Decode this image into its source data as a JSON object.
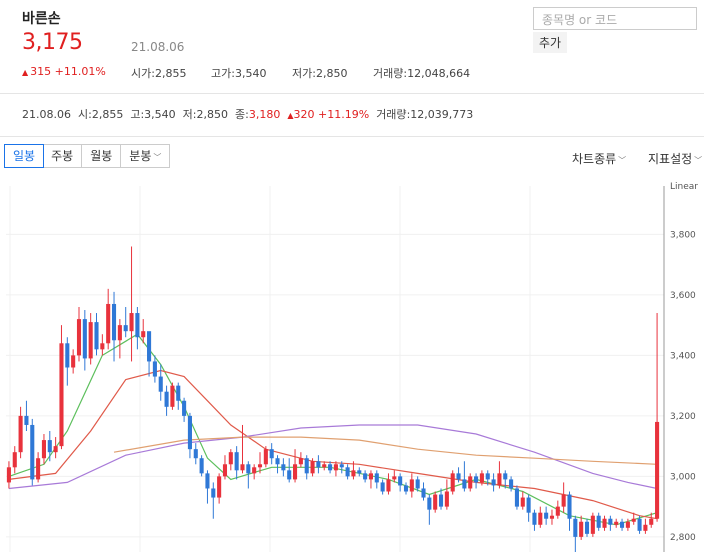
{
  "stock": {
    "name": "바른손",
    "price": "3,175",
    "date": "21.08.06",
    "change": "315",
    "change_pct": "+11.01%",
    "open_label": "시가",
    "open": "2,855",
    "high_label": "고가",
    "high": "3,540",
    "low_label": "저가",
    "low": "2,850",
    "volume_label": "거래량",
    "volume": "12,048,664"
  },
  "search": {
    "placeholder": "종목명 or 코드",
    "add_label": "추가"
  },
  "daily": {
    "date": "21.08.06",
    "open_label": "시",
    "open": "2,855",
    "high_label": "고",
    "high": "3,540",
    "low_label": "저",
    "low": "2,850",
    "close_label": "종",
    "close": "3,180",
    "change": "320",
    "change_pct": "+11.19%",
    "volume_label": "거래량",
    "volume": "12,039,773"
  },
  "tabs": [
    {
      "label": "일봉",
      "active": true
    },
    {
      "label": "주봉",
      "active": false
    },
    {
      "label": "월봉",
      "active": false
    },
    {
      "label": "분봉",
      "active": false
    }
  ],
  "menu": {
    "chart_type": "차트종류",
    "indicator": "지표설정"
  },
  "colors": {
    "up": "#e8323c",
    "down": "#2f78d6",
    "ma5": "#5cbf5c",
    "ma20": "#e05a4a",
    "ma60": "#a87ad8",
    "ma120": "#e0a070"
  },
  "chart_data": {
    "type": "candlestick",
    "scale_label": "Linear",
    "ylim": [
      2750,
      3960
    ],
    "y_ticks": [
      "3,800",
      "3,600",
      "3,400",
      "3,200",
      "3,000",
      "2,800"
    ],
    "candles": [
      [
        2980,
        3030,
        2960,
        3050
      ],
      [
        3030,
        3080,
        3010,
        3100
      ],
      [
        3080,
        3200,
        3060,
        3230
      ],
      [
        3200,
        3170,
        3150,
        3250
      ],
      [
        3170,
        2990,
        2970,
        3190
      ],
      [
        2990,
        3060,
        2980,
        3080
      ],
      [
        3060,
        3120,
        3040,
        3140
      ],
      [
        3120,
        3080,
        3050,
        3150
      ],
      [
        3080,
        3100,
        3060,
        3130
      ],
      [
        3100,
        3440,
        3090,
        3500
      ],
      [
        3440,
        3360,
        3300,
        3460
      ],
      [
        3360,
        3400,
        3340,
        3420
      ],
      [
        3400,
        3520,
        3380,
        3560
      ],
      [
        3520,
        3390,
        3350,
        3550
      ],
      [
        3390,
        3510,
        3370,
        3540
      ],
      [
        3510,
        3420,
        3400,
        3540
      ],
      [
        3420,
        3440,
        3400,
        3470
      ],
      [
        3440,
        3570,
        3420,
        3620
      ],
      [
        3570,
        3450,
        3380,
        3610
      ],
      [
        3450,
        3500,
        3390,
        3520
      ],
      [
        3500,
        3480,
        3460,
        3560
      ],
      [
        3480,
        3540,
        3380,
        3760
      ],
      [
        3540,
        3460,
        3420,
        3560
      ],
      [
        3460,
        3480,
        3440,
        3520
      ],
      [
        3480,
        3380,
        3330,
        3470
      ],
      [
        3380,
        3330,
        3310,
        3400
      ],
      [
        3330,
        3280,
        3250,
        3370
      ],
      [
        3280,
        3230,
        3200,
        3300
      ],
      [
        3230,
        3300,
        3220,
        3310
      ],
      [
        3300,
        3250,
        3220,
        3310
      ],
      [
        3250,
        3200,
        3180,
        3260
      ],
      [
        3200,
        3090,
        3060,
        3210
      ],
      [
        3090,
        3060,
        3040,
        3110
      ],
      [
        3060,
        3010,
        3000,
        3070
      ],
      [
        3010,
        2960,
        2910,
        3020
      ],
      [
        2960,
        2930,
        2860,
        2980
      ],
      [
        2930,
        3000,
        2910,
        3010
      ],
      [
        3000,
        3040,
        2990,
        3070
      ],
      [
        3040,
        3080,
        3020,
        3090
      ],
      [
        3080,
        3020,
        2990,
        3100
      ],
      [
        3020,
        3040,
        3010,
        3170
      ],
      [
        3040,
        3010,
        2960,
        3050
      ],
      [
        3010,
        3030,
        2990,
        3040
      ],
      [
        3030,
        3040,
        3010,
        3080
      ],
      [
        3040,
        3090,
        3030,
        3100
      ],
      [
        3090,
        3060,
        3040,
        3110
      ],
      [
        3060,
        3040,
        3010,
        3070
      ],
      [
        3040,
        3020,
        3000,
        3060
      ],
      [
        3020,
        2990,
        2980,
        3060
      ],
      [
        2990,
        3040,
        2980,
        3090
      ],
      [
        3040,
        3060,
        3030,
        3080
      ],
      [
        3060,
        3010,
        2990,
        3070
      ],
      [
        3010,
        3050,
        3000,
        3060
      ],
      [
        3050,
        3030,
        3010,
        3070
      ],
      [
        3030,
        3040,
        3020,
        3050
      ],
      [
        3040,
        3020,
        3010,
        3050
      ],
      [
        3020,
        3040,
        3000,
        3050
      ],
      [
        3040,
        3030,
        3010,
        3050
      ],
      [
        3030,
        3000,
        2990,
        3040
      ],
      [
        3000,
        3020,
        2990,
        3050
      ],
      [
        3020,
        3010,
        3000,
        3030
      ],
      [
        3010,
        2990,
        2980,
        3020
      ],
      [
        2990,
        3010,
        2960,
        3020
      ],
      [
        3010,
        2980,
        2960,
        3020
      ],
      [
        2980,
        2950,
        2940,
        2990
      ],
      [
        2950,
        2990,
        2940,
        3010
      ],
      [
        2990,
        3000,
        2980,
        3020
      ],
      [
        3000,
        2970,
        2950,
        3010
      ],
      [
        2970,
        2950,
        2940,
        2980
      ],
      [
        2950,
        2990,
        2930,
        3010
      ],
      [
        2990,
        2960,
        2950,
        3000
      ],
      [
        2960,
        2930,
        2920,
        2980
      ],
      [
        2930,
        2890,
        2840,
        2940
      ],
      [
        2890,
        2940,
        2880,
        2950
      ],
      [
        2940,
        2900,
        2890,
        2960
      ],
      [
        2900,
        2950,
        2890,
        2990
      ],
      [
        2950,
        3010,
        2940,
        3020
      ],
      [
        3010,
        2990,
        2980,
        3030
      ],
      [
        2990,
        2960,
        2950,
        3050
      ],
      [
        2960,
        3000,
        2950,
        3010
      ],
      [
        3000,
        2980,
        2960,
        3010
      ],
      [
        2980,
        3010,
        2970,
        3020
      ],
      [
        3010,
        2990,
        2970,
        3020
      ],
      [
        2990,
        2970,
        2950,
        3010
      ],
      [
        2970,
        3010,
        2960,
        3050
      ],
      [
        3010,
        2990,
        2960,
        3020
      ],
      [
        2990,
        2960,
        2950,
        3000
      ],
      [
        2960,
        2900,
        2890,
        2970
      ],
      [
        2900,
        2930,
        2890,
        2950
      ],
      [
        2930,
        2880,
        2850,
        2940
      ],
      [
        2880,
        2840,
        2820,
        2890
      ],
      [
        2840,
        2880,
        2830,
        2900
      ],
      [
        2880,
        2860,
        2840,
        2900
      ],
      [
        2860,
        2870,
        2840,
        2890
      ],
      [
        2870,
        2900,
        2860,
        2920
      ],
      [
        2900,
        2940,
        2880,
        2980
      ],
      [
        2940,
        2860,
        2820,
        2950
      ],
      [
        2860,
        2800,
        2740,
        2870
      ],
      [
        2800,
        2850,
        2790,
        2870
      ],
      [
        2850,
        2810,
        2800,
        2860
      ],
      [
        2810,
        2870,
        2800,
        2880
      ],
      [
        2870,
        2830,
        2820,
        2880
      ],
      [
        2830,
        2860,
        2820,
        2870
      ],
      [
        2860,
        2840,
        2820,
        2870
      ],
      [
        2840,
        2850,
        2830,
        2860
      ],
      [
        2850,
        2830,
        2820,
        2860
      ],
      [
        2830,
        2850,
        2820,
        2860
      ],
      [
        2850,
        2860,
        2840,
        2880
      ],
      [
        2860,
        2820,
        2810,
        2870
      ],
      [
        2820,
        2840,
        2810,
        2860
      ],
      [
        2840,
        2860,
        2830,
        2880
      ],
      [
        2860,
        3180,
        2850,
        3540
      ]
    ],
    "ma": [
      {
        "key": "ma5",
        "points": [
          [
            0,
            3000
          ],
          [
            6,
            3040
          ],
          [
            10,
            3150
          ],
          [
            16,
            3400
          ],
          [
            22,
            3470
          ],
          [
            26,
            3370
          ],
          [
            30,
            3230
          ],
          [
            34,
            3060
          ],
          [
            38,
            2990
          ],
          [
            45,
            3030
          ],
          [
            55,
            3030
          ],
          [
            65,
            2990
          ],
          [
            72,
            2940
          ],
          [
            80,
            2990
          ],
          [
            88,
            2950
          ],
          [
            96,
            2870
          ],
          [
            104,
            2840
          ],
          [
            111,
            2880
          ]
        ]
      },
      {
        "key": "ma20",
        "points": [
          [
            0,
            2990
          ],
          [
            8,
            3010
          ],
          [
            14,
            3150
          ],
          [
            20,
            3320
          ],
          [
            26,
            3350
          ],
          [
            30,
            3330
          ],
          [
            34,
            3250
          ],
          [
            38,
            3170
          ],
          [
            44,
            3090
          ],
          [
            52,
            3050
          ],
          [
            60,
            3040
          ],
          [
            70,
            3010
          ],
          [
            80,
            2980
          ],
          [
            90,
            2960
          ],
          [
            100,
            2920
          ],
          [
            108,
            2870
          ],
          [
            111,
            2860
          ]
        ]
      },
      {
        "key": "ma60",
        "points": [
          [
            0,
            2960
          ],
          [
            10,
            2980
          ],
          [
            20,
            3070
          ],
          [
            30,
            3110
          ],
          [
            40,
            3130
          ],
          [
            50,
            3160
          ],
          [
            60,
            3170
          ],
          [
            70,
            3170
          ],
          [
            80,
            3140
          ],
          [
            90,
            3080
          ],
          [
            100,
            3010
          ],
          [
            106,
            2980
          ],
          [
            111,
            2960
          ]
        ]
      },
      {
        "key": "ma120",
        "points": [
          [
            18,
            3080
          ],
          [
            30,
            3120
          ],
          [
            40,
            3130
          ],
          [
            50,
            3130
          ],
          [
            60,
            3120
          ],
          [
            70,
            3090
          ],
          [
            80,
            3070
          ],
          [
            90,
            3060
          ],
          [
            100,
            3050
          ],
          [
            111,
            3040
          ]
        ]
      }
    ]
  }
}
